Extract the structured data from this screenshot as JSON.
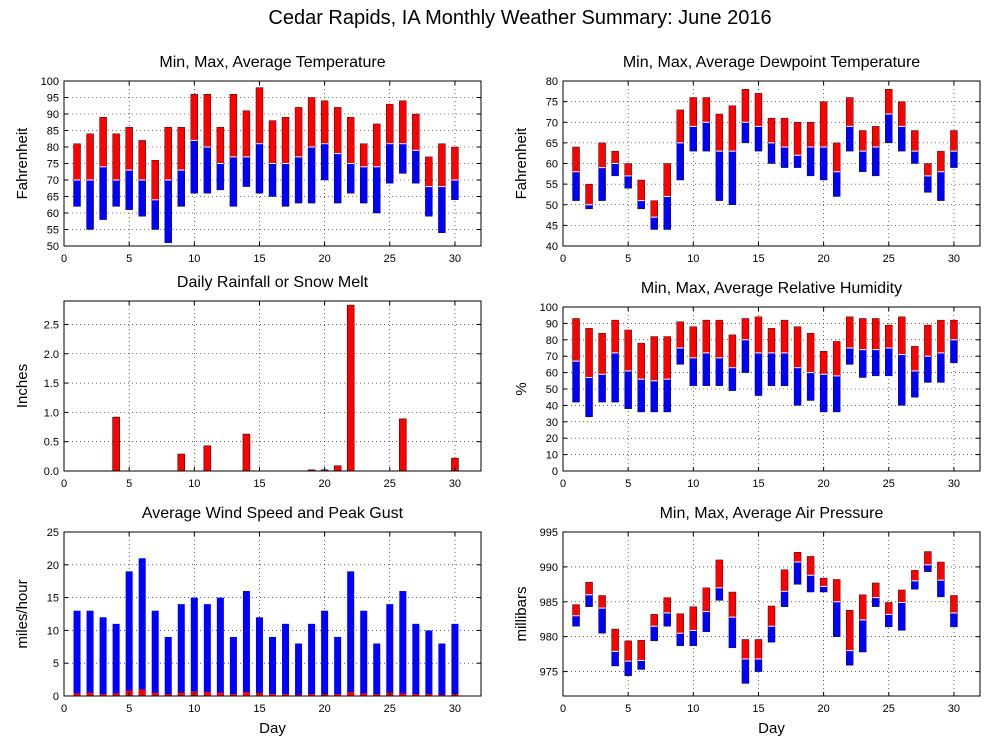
{
  "figure_title": "Cedar Rapids, IA Monthly Weather Summary: June 2016",
  "colors": {
    "max_segment": "#ff0000",
    "min_segment": "#0000ff",
    "avg_line": "#ffffff"
  },
  "chart_data": [
    {
      "id": "temp",
      "type": "bar",
      "title": "Min, Max, Average Temperature",
      "xlabel": "",
      "ylabel": "Fahrenheit",
      "xlim": [
        0,
        32
      ],
      "ylim": [
        50,
        100
      ],
      "yticks": [
        50,
        55,
        60,
        65,
        70,
        75,
        80,
        85,
        90,
        95,
        100
      ],
      "xticks": [
        0,
        5,
        10,
        15,
        20,
        25,
        30
      ],
      "days": [
        1,
        2,
        3,
        4,
        5,
        6,
        7,
        8,
        9,
        10,
        11,
        12,
        13,
        14,
        15,
        16,
        17,
        18,
        19,
        20,
        21,
        22,
        23,
        24,
        25,
        26,
        27,
        28,
        29,
        30
      ],
      "min": [
        62,
        55,
        58,
        62,
        61,
        59,
        55,
        51,
        62,
        66,
        66,
        67,
        62,
        68,
        66,
        65,
        62,
        63,
        63,
        70,
        63,
        66,
        63,
        60,
        69,
        72,
        69,
        59,
        54,
        64
      ],
      "max": [
        81,
        84,
        89,
        84,
        86,
        82,
        76,
        86,
        86,
        96,
        96,
        86,
        96,
        91,
        98,
        88,
        89,
        92,
        95,
        94,
        92,
        89,
        81,
        87,
        93,
        94,
        90,
        77,
        81,
        80
      ],
      "avg": [
        70,
        70,
        74,
        70,
        73,
        70,
        64,
        70,
        73,
        82,
        80,
        75,
        77,
        77,
        81,
        75,
        75,
        77,
        80,
        81,
        78,
        75,
        74,
        74,
        81,
        81,
        79,
        68,
        68,
        70
      ]
    },
    {
      "id": "dew",
      "type": "bar",
      "title": "Min, Max, Average Dewpoint Temperature",
      "xlabel": "",
      "ylabel": "Fahrenheit",
      "xlim": [
        0,
        32
      ],
      "ylim": [
        40,
        80
      ],
      "yticks": [
        40,
        45,
        50,
        55,
        60,
        65,
        70,
        75,
        80
      ],
      "xticks": [
        0,
        5,
        10,
        15,
        20,
        25,
        30
      ],
      "days": [
        1,
        2,
        3,
        4,
        5,
        6,
        7,
        8,
        9,
        10,
        11,
        12,
        13,
        14,
        15,
        16,
        17,
        18,
        19,
        20,
        21,
        22,
        23,
        24,
        25,
        26,
        27,
        28,
        29,
        30
      ],
      "min": [
        51,
        49,
        51,
        57,
        54,
        49,
        44,
        44,
        56,
        63,
        63,
        51,
        50,
        65,
        63,
        60,
        59,
        59,
        57,
        56,
        52,
        63,
        58,
        57,
        65,
        63,
        60,
        53,
        51,
        59
      ],
      "max": [
        64,
        55,
        65,
        63,
        60,
        56,
        51,
        60,
        73,
        76,
        76,
        72,
        74,
        78,
        77,
        71,
        71,
        70,
        70,
        75,
        65,
        76,
        68,
        69,
        78,
        75,
        68,
        60,
        63,
        68
      ],
      "avg": [
        58,
        50,
        59,
        60,
        57,
        51,
        47,
        52,
        65,
        69,
        70,
        63,
        63,
        70,
        69,
        65,
        64,
        62,
        64,
        64,
        58,
        69,
        63,
        64,
        72,
        69,
        63,
        57,
        58,
        63
      ]
    },
    {
      "id": "rain",
      "type": "bar",
      "title": "Daily Rainfall or Snow Melt",
      "xlabel": "",
      "ylabel": "Inches",
      "xlim": [
        0,
        32
      ],
      "ylim": [
        0,
        2.9
      ],
      "yticks": [
        0.0,
        0.5,
        1.0,
        1.5,
        2.0,
        2.5
      ],
      "ytick_labels": [
        "0.0",
        "0.5",
        "1.0",
        "1.5",
        "2.0",
        "2.5"
      ],
      "xticks": [
        0,
        5,
        10,
        15,
        20,
        25,
        30
      ],
      "days": [
        1,
        2,
        3,
        4,
        5,
        6,
        7,
        8,
        9,
        10,
        11,
        12,
        13,
        14,
        15,
        16,
        17,
        18,
        19,
        20,
        21,
        22,
        23,
        24,
        25,
        26,
        27,
        28,
        29,
        30
      ],
      "values": [
        0,
        0,
        0,
        0.92,
        0,
        0,
        0,
        0,
        0.29,
        0,
        0.43,
        0,
        0,
        0.63,
        0,
        0,
        0,
        0,
        0.02,
        0.02,
        0.09,
        2.83,
        0,
        0,
        0,
        0.89,
        0,
        0,
        0,
        0.22
      ]
    },
    {
      "id": "rh",
      "type": "bar",
      "title": "Min, Max, Average Relative Humidity",
      "xlabel": "",
      "ylabel": "%",
      "xlim": [
        0,
        32
      ],
      "ylim": [
        0,
        100
      ],
      "yticks": [
        0,
        10,
        20,
        30,
        40,
        50,
        60,
        70,
        80,
        90,
        100
      ],
      "xticks": [
        0,
        5,
        10,
        15,
        20,
        25,
        30
      ],
      "days": [
        1,
        2,
        3,
        4,
        5,
        6,
        7,
        8,
        9,
        10,
        11,
        12,
        13,
        14,
        15,
        16,
        17,
        18,
        19,
        20,
        21,
        22,
        23,
        24,
        25,
        26,
        27,
        28,
        29,
        30
      ],
      "min": [
        42,
        33,
        42,
        42,
        38,
        36,
        36,
        36,
        65,
        52,
        52,
        52,
        49,
        60,
        46,
        52,
        52,
        40,
        43,
        36,
        36,
        65,
        57,
        58,
        58,
        40,
        45,
        54,
        54,
        66
      ],
      "max": [
        93,
        87,
        84,
        92,
        86,
        78,
        82,
        82,
        91,
        88,
        92,
        92,
        83,
        93,
        94,
        87,
        92,
        88,
        84,
        73,
        79,
        94,
        93,
        93,
        89,
        94,
        76,
        89,
        92,
        92
      ],
      "avg": [
        67,
        57,
        59,
        72,
        61,
        56,
        55,
        56,
        75,
        69,
        72,
        69,
        63,
        80,
        72,
        72,
        72,
        63,
        60,
        59,
        58,
        75,
        74,
        74,
        75,
        71,
        61,
        70,
        72,
        80
      ]
    },
    {
      "id": "wind",
      "type": "bar",
      "title": "Average Wind Speed and Peak Gust",
      "xlabel": "Day",
      "ylabel": "miles/hour",
      "xlim": [
        0,
        32
      ],
      "ylim": [
        0,
        25
      ],
      "yticks": [
        0,
        5,
        10,
        15,
        20,
        25
      ],
      "xticks": [
        0,
        5,
        10,
        15,
        20,
        25,
        30
      ],
      "days": [
        1,
        2,
        3,
        4,
        5,
        6,
        7,
        8,
        9,
        10,
        11,
        12,
        13,
        14,
        15,
        16,
        17,
        18,
        19,
        20,
        21,
        22,
        23,
        24,
        25,
        26,
        27,
        28,
        29,
        30
      ],
      "peak_gust": [
        13,
        13,
        12,
        11,
        19,
        21,
        13,
        9,
        14,
        15,
        14,
        15,
        9,
        16,
        12,
        9,
        11,
        8,
        11,
        13,
        9,
        19,
        13,
        8,
        14,
        16,
        11,
        10,
        8,
        11
      ],
      "avg_speed": [
        0.4,
        0.5,
        0.3,
        0.4,
        0.8,
        1.0,
        0.5,
        0.3,
        0.5,
        0.7,
        0.6,
        0.5,
        0.3,
        0.6,
        0.5,
        0.3,
        0.3,
        0.2,
        0.3,
        0.3,
        0.3,
        0.6,
        0.4,
        0.3,
        0.5,
        0.4,
        0.3,
        0.3,
        0.2,
        0.3
      ]
    },
    {
      "id": "pres",
      "type": "bar",
      "title": "Min, Max, Average Air Pressure",
      "xlabel": "Day",
      "ylabel": "millibars",
      "xlim": [
        0,
        32
      ],
      "ylim": [
        971.5,
        995
      ],
      "yticks": [
        975,
        980,
        985,
        990,
        995
      ],
      "xticks": [
        0,
        5,
        10,
        15,
        20,
        25,
        30
      ],
      "days": [
        1,
        2,
        3,
        4,
        5,
        6,
        7,
        8,
        9,
        10,
        11,
        12,
        13,
        14,
        15,
        16,
        17,
        18,
        19,
        20,
        21,
        22,
        23,
        24,
        25,
        26,
        27,
        28,
        29,
        30
      ],
      "min": [
        981.5,
        984.3,
        980.5,
        975.8,
        974.4,
        975.3,
        979.4,
        981.5,
        978.7,
        978.7,
        980.7,
        985.2,
        978.4,
        973.3,
        975.0,
        979.2,
        984.3,
        987.5,
        986.4,
        986.4,
        980.0,
        975.9,
        977.8,
        984.3,
        981.4,
        980.9,
        986.8,
        989.3,
        985.7,
        981.4
      ],
      "max": [
        984.6,
        987.8,
        985.9,
        981.1,
        979.4,
        979.5,
        983.2,
        985.6,
        983.3,
        984.3,
        987.0,
        991.0,
        986.4,
        979.6,
        979.6,
        984.4,
        989.6,
        992.1,
        991.5,
        988.4,
        988.2,
        983.8,
        986.0,
        987.7,
        984.9,
        986.7,
        989.5,
        992.2,
        990.7,
        985.9
      ],
      "avg": [
        983.0,
        986.0,
        984.1,
        977.9,
        976.5,
        976.6,
        981.5,
        983.4,
        980.5,
        980.9,
        983.6,
        987.0,
        982.8,
        976.8,
        976.8,
        981.5,
        986.5,
        990.7,
        988.8,
        987.2,
        985.0,
        978.0,
        982.4,
        985.6,
        983.2,
        984.9,
        988.0,
        990.3,
        988.1,
        983.4
      ]
    }
  ]
}
